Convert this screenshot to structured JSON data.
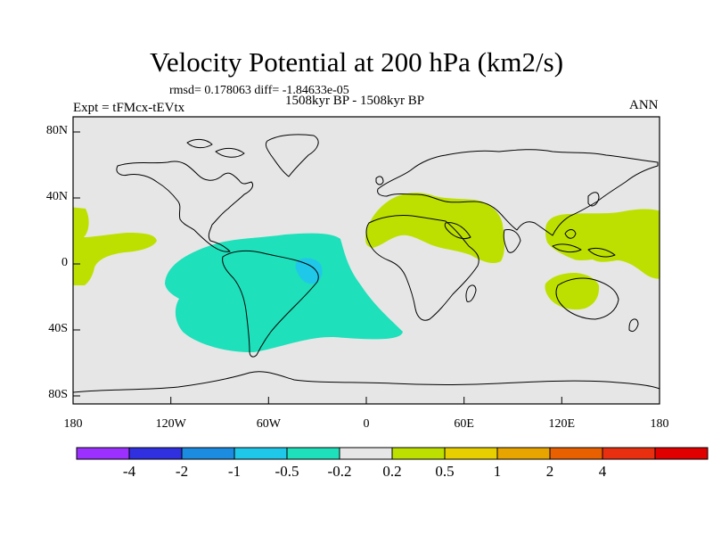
{
  "title": "Velocity Potential at 200 hPa (km2/s)",
  "stats": "rmsd= 0.178063 diff= -1.84633e-05",
  "period": "1508kyr BP - 1508kyr BP",
  "experiment": "Expt = tFMcx-tEVtx",
  "season": "ANN",
  "map": {
    "background_color": "#e6e6e6",
    "x_ticks": [
      "180",
      "120W",
      "60W",
      "0",
      "60E",
      "120E",
      "180"
    ],
    "y_ticks": [
      "80N",
      "40N",
      "0",
      "40S",
      "80S"
    ]
  },
  "colorbar": {
    "colors": [
      "#9b30ff",
      "#3030e0",
      "#1c8ce0",
      "#1fc8e8",
      "#1ee0bb",
      "#e6e6e6",
      "#bde000",
      "#e8d000",
      "#e8a500",
      "#e86000",
      "#e83010",
      "#e00000"
    ],
    "labels": [
      "-4",
      "-2",
      "-1",
      "-0.5",
      "-0.2",
      "0.2",
      "0.5",
      "1",
      "2",
      "4"
    ]
  }
}
